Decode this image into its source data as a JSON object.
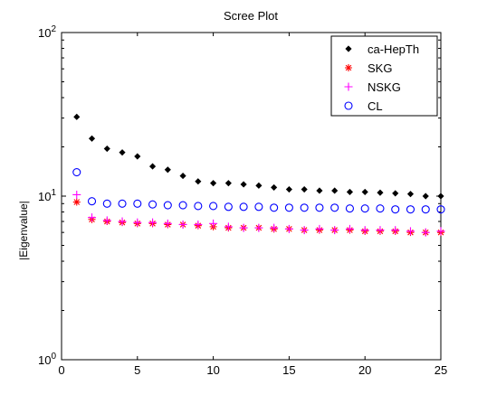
{
  "chart_data": {
    "type": "scatter",
    "title": "Scree Plot",
    "xlabel": "",
    "ylabel": "|Eigenvalue|",
    "xlim": [
      0,
      25
    ],
    "ylim": [
      1,
      100
    ],
    "yscale": "log",
    "grid": false,
    "legend_position": "top-right",
    "x_ticks": [
      {
        "value": 0,
        "label": "0"
      },
      {
        "value": 5,
        "label": "5"
      },
      {
        "value": 10,
        "label": "10"
      },
      {
        "value": 15,
        "label": "15"
      },
      {
        "value": 20,
        "label": "20"
      },
      {
        "value": 25,
        "label": "25"
      }
    ],
    "y_ticks": [
      {
        "value": 1,
        "base": "10",
        "exp": "0"
      },
      {
        "value": 10,
        "base": "10",
        "exp": "1"
      },
      {
        "value": 100,
        "base": "10",
        "exp": "2"
      }
    ],
    "x": [
      1,
      2,
      3,
      4,
      5,
      6,
      7,
      8,
      9,
      10,
      11,
      12,
      13,
      14,
      15,
      16,
      17,
      18,
      19,
      20,
      21,
      22,
      23,
      24,
      25
    ],
    "series": [
      {
        "name": "ca-HepTh",
        "marker": "diamond",
        "color": "#000000",
        "values": [
          30.5,
          22.5,
          19.5,
          18.5,
          17.5,
          15.2,
          14.5,
          13.3,
          12.3,
          12.0,
          12.0,
          11.8,
          11.6,
          11.3,
          11.0,
          11.0,
          10.8,
          10.8,
          10.6,
          10.6,
          10.5,
          10.4,
          10.3,
          10.0,
          10.0
        ]
      },
      {
        "name": "SKG",
        "marker": "asterisk",
        "color": "#ff0000",
        "values": [
          9.2,
          7.2,
          7.0,
          6.9,
          6.8,
          6.8,
          6.7,
          6.7,
          6.6,
          6.5,
          6.4,
          6.4,
          6.4,
          6.3,
          6.3,
          6.2,
          6.2,
          6.2,
          6.2,
          6.1,
          6.1,
          6.1,
          6.0,
          6.0,
          6.0
        ]
      },
      {
        "name": "NSKG",
        "marker": "plus",
        "color": "#ff00ff",
        "values": [
          10.2,
          7.4,
          7.1,
          7.0,
          6.9,
          6.9,
          6.8,
          6.7,
          6.7,
          6.8,
          6.5,
          6.4,
          6.4,
          6.4,
          6.3,
          6.2,
          6.3,
          6.2,
          6.3,
          6.2,
          6.2,
          6.2,
          6.1,
          6.0,
          6.1
        ]
      },
      {
        "name": "CL",
        "marker": "circle",
        "color": "#0000ff",
        "values": [
          14.0,
          9.3,
          9.0,
          9.0,
          9.0,
          8.9,
          8.8,
          8.8,
          8.7,
          8.7,
          8.6,
          8.6,
          8.6,
          8.5,
          8.5,
          8.5,
          8.5,
          8.5,
          8.4,
          8.4,
          8.4,
          8.3,
          8.3,
          8.3,
          8.3
        ]
      }
    ]
  }
}
